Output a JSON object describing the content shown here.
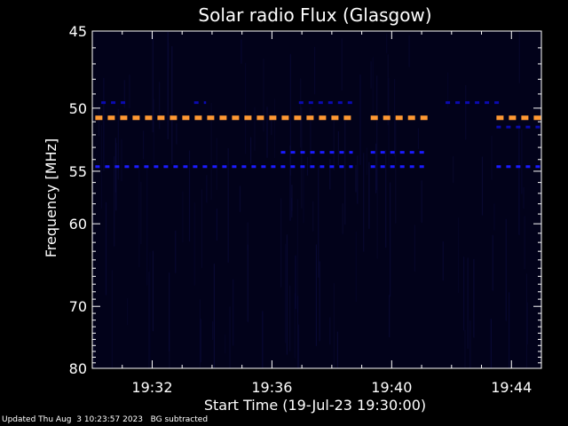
{
  "chart_data": {
    "type": "heatmap",
    "title": "Solar radio Flux (Glasgow)",
    "xlabel": "Start Time (19-Jul-23 19:30:00)",
    "ylabel": "Frequency [MHz]",
    "x_unit": "minutes after 19:30:00",
    "xlim": [
      0,
      15
    ],
    "ylim": [
      45,
      80
    ],
    "y_scale": "reciprocal",
    "x_ticks": [
      {
        "value": 2,
        "label": "19:32"
      },
      {
        "value": 6,
        "label": "19:36"
      },
      {
        "value": 10,
        "label": "19:40"
      },
      {
        "value": 14,
        "label": "19:44"
      }
    ],
    "y_ticks": [
      {
        "value": 45,
        "label": "45"
      },
      {
        "value": 50,
        "label": "50"
      },
      {
        "value": 55,
        "label": "55"
      },
      {
        "value": 60,
        "label": "60"
      },
      {
        "value": 70,
        "label": "70"
      },
      {
        "value": 80,
        "label": "80"
      }
    ],
    "background_color": "#02021a",
    "bands": [
      {
        "freq": 50.7,
        "color": "#ff9933",
        "segments": [
          [
            0.1,
            8.7
          ],
          [
            9.3,
            11.2
          ],
          [
            13.5,
            15.0
          ]
        ]
      },
      {
        "freq": 54.6,
        "color": "#1a1aff",
        "segments": [
          [
            0.1,
            8.7
          ],
          [
            9.3,
            11.2
          ],
          [
            13.5,
            15.0
          ]
        ]
      },
      {
        "freq": 53.4,
        "color": "#1a1aff",
        "segments": [
          [
            6.3,
            8.7
          ],
          [
            9.3,
            11.2
          ]
        ]
      },
      {
        "freq": 49.6,
        "color": "#0a0ab0",
        "segments": [
          [
            0.3,
            1.1
          ],
          [
            3.4,
            3.8
          ],
          [
            6.9,
            8.7
          ],
          [
            11.8,
            13.6
          ]
        ]
      },
      {
        "freq": 51.4,
        "color": "#0a0ab0",
        "segments": [
          [
            13.5,
            15.0
          ]
        ]
      }
    ]
  },
  "footer": {
    "updated": "Updated Thu Aug  3 10:23:57 2023",
    "note": "BG subtracted"
  }
}
